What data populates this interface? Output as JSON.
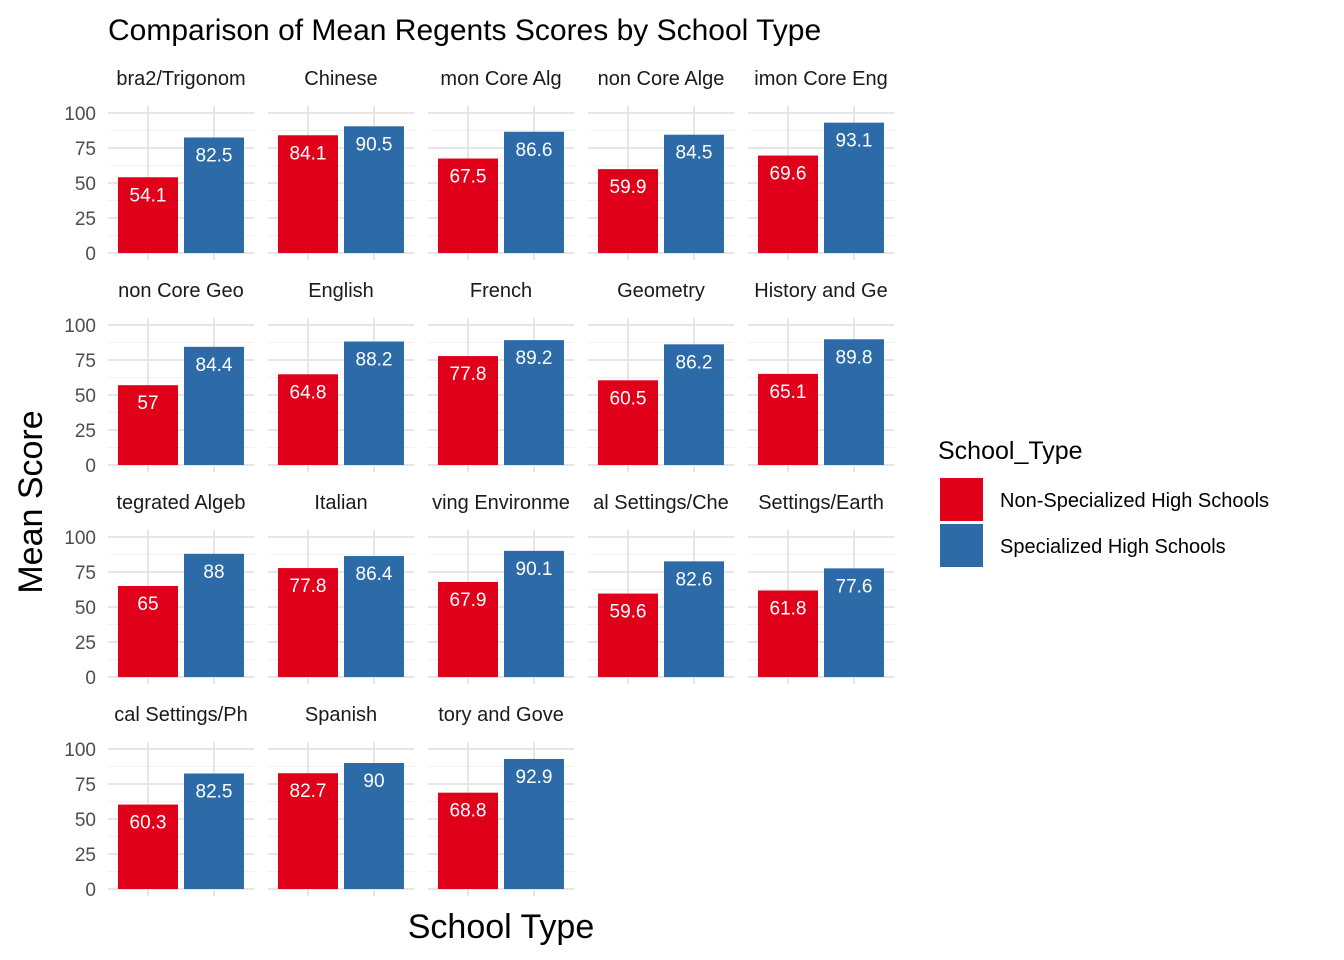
{
  "chart_data": {
    "type": "bar",
    "title": "Comparison of Mean Regents Scores by School Type",
    "xlabel": "School Type",
    "ylabel": "Mean Score",
    "ylim": [
      0,
      100
    ],
    "yticks": [
      0,
      25,
      50,
      75,
      100
    ],
    "grid": true,
    "legend": {
      "title": "School_Type",
      "placement": "right",
      "entries": [
        {
          "name": "Non-Specialized High Schools",
          "color": "#E0001A"
        },
        {
          "name": "Specialized High Schools",
          "color": "#2C6AA8"
        }
      ]
    },
    "series_names": [
      "Non-Specialized High Schools",
      "Specialized High Schools"
    ],
    "facets": [
      {
        "label": "bra2/Trigonom",
        "values": [
          54.1,
          82.5
        ],
        "labels": [
          "54.1",
          "82.5"
        ]
      },
      {
        "label": "Chinese",
        "values": [
          84.1,
          90.5
        ],
        "labels": [
          "84.1",
          "90.5"
        ]
      },
      {
        "label": "mon Core Alg",
        "values": [
          67.5,
          86.6
        ],
        "labels": [
          "67.5",
          "86.6"
        ]
      },
      {
        "label": "non Core Alge",
        "values": [
          59.9,
          84.5
        ],
        "labels": [
          "59.9",
          "84.5"
        ]
      },
      {
        "label": "imon Core Eng",
        "values": [
          69.6,
          93.1
        ],
        "labels": [
          "69.6",
          "93.1"
        ]
      },
      {
        "label": "non Core Geo",
        "values": [
          57,
          84.4
        ],
        "labels": [
          "57",
          "84.4"
        ]
      },
      {
        "label": "English",
        "values": [
          64.8,
          88.2
        ],
        "labels": [
          "64.8",
          "88.2"
        ]
      },
      {
        "label": "French",
        "values": [
          77.8,
          89.2
        ],
        "labels": [
          "77.8",
          "89.2"
        ]
      },
      {
        "label": "Geometry",
        "values": [
          60.5,
          86.2
        ],
        "labels": [
          "60.5",
          "86.2"
        ]
      },
      {
        "label": "History and Ge",
        "values": [
          65.1,
          89.8
        ],
        "labels": [
          "65.1",
          "89.8"
        ]
      },
      {
        "label": "tegrated Algeb",
        "values": [
          65,
          88
        ],
        "labels": [
          "65",
          "88"
        ]
      },
      {
        "label": "Italian",
        "values": [
          77.8,
          86.4
        ],
        "labels": [
          "77.8",
          "86.4"
        ]
      },
      {
        "label": "ving Environme",
        "values": [
          67.9,
          90.1
        ],
        "labels": [
          "67.9",
          "90.1"
        ]
      },
      {
        "label": "al Settings/Che",
        "values": [
          59.6,
          82.6
        ],
        "labels": [
          "59.6",
          "82.6"
        ]
      },
      {
        "label": "Settings/Earth",
        "values": [
          61.8,
          77.6
        ],
        "labels": [
          "61.8",
          "77.6"
        ]
      },
      {
        "label": "cal Settings/Ph",
        "values": [
          60.3,
          82.5
        ],
        "labels": [
          "60.3",
          "82.5"
        ]
      },
      {
        "label": "Spanish",
        "values": [
          82.7,
          90
        ],
        "labels": [
          "82.7",
          "90"
        ]
      },
      {
        "label": "tory and Gove",
        "values": [
          68.8,
          92.9
        ],
        "labels": [
          "68.8",
          "92.9"
        ]
      }
    ]
  }
}
